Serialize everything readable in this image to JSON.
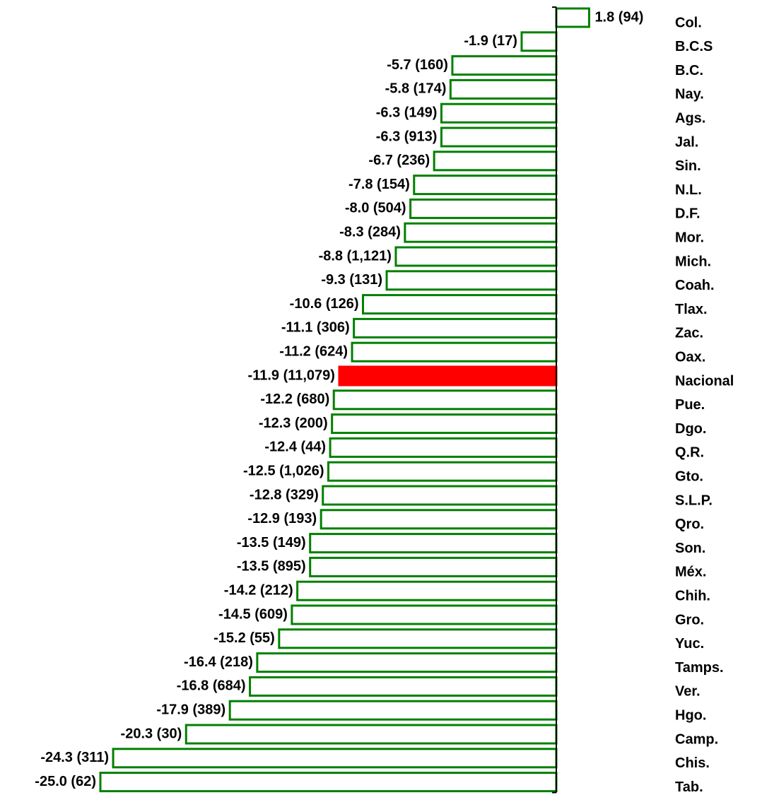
{
  "chart_data": {
    "type": "hbar",
    "categories": [
      "Col.",
      "B.C.S",
      "B.C.",
      "Nay.",
      "Ags.",
      "Jal.",
      "Sin.",
      "N.L.",
      "D.F.",
      "Mor.",
      "Mich.",
      "Coah.",
      "Tlax.",
      "Zac.",
      "Oax.",
      "Nacional",
      "Pue.",
      "Dgo.",
      "Q.R.",
      "Gto.",
      "S.L.P.",
      "Qro.",
      "Son.",
      "Méx.",
      "Chih.",
      "Gro.",
      "Yuc.",
      "Tamps.",
      "Ver.",
      "Hgo.",
      "Camp.",
      "Chis.",
      "Tab."
    ],
    "values": [
      1.8,
      -1.9,
      -5.7,
      -5.8,
      -6.3,
      -6.3,
      -6.7,
      -7.8,
      -8.0,
      -8.3,
      -8.8,
      -9.3,
      -10.6,
      -11.1,
      -11.2,
      -11.9,
      -12.2,
      -12.3,
      -12.4,
      -12.5,
      -12.8,
      -12.9,
      -13.5,
      -13.5,
      -14.2,
      -14.5,
      -15.2,
      -16.4,
      -16.8,
      -17.9,
      -20.3,
      -24.3,
      -25.0
    ],
    "value_labels": [
      "1.8 (94)",
      "-1.9 (17)",
      "-5.7 (160)",
      "-5.8 (174)",
      "-6.3 (149)",
      "-6.3 (913)",
      "-6.7 (236)",
      "-7.8 (154)",
      "-8.0 (504)",
      "-8.3 (284)",
      "-8.8 (1,121)",
      "-9.3 (131)",
      "-10.6 (126)",
      "-11.1 (306)",
      "-11.2 (624)",
      "-11.9 (11,079)",
      "-12.2 (680)",
      "-12.3 (200)",
      "-12.4 (44)",
      "-12.5 (1,026)",
      "-12.8 (329)",
      "-12.9 (193)",
      "-13.5 (149)",
      "-13.5 (895)",
      "-14.2 (212)",
      "-14.5 (609)",
      "-15.2 (55)",
      "-16.4 (218)",
      "-16.8 (684)",
      "-17.9 (389)",
      "-20.3 (30)",
      "-24.3 (311)",
      "-25.0 (62)"
    ],
    "colors": [
      "#008000",
      "#008000",
      "#008000",
      "#008000",
      "#008000",
      "#008000",
      "#008000",
      "#008000",
      "#008000",
      "#008000",
      "#008000",
      "#008000",
      "#008000",
      "#008000",
      "#008000",
      "#ff0000",
      "#008000",
      "#008000",
      "#008000",
      "#008000",
      "#008000",
      "#008000",
      "#008000",
      "#008000",
      "#008000",
      "#008000",
      "#008000",
      "#008000",
      "#008000",
      "#008000",
      "#008000",
      "#008000",
      "#008000"
    ]
  }
}
